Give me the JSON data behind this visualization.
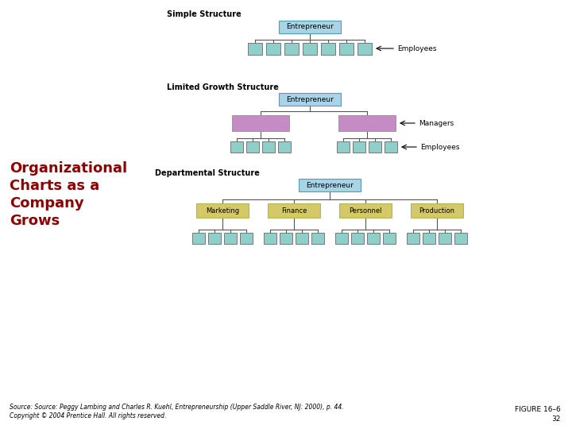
{
  "title_text": "Organizational\nCharts as a\nCompany\nGrows",
  "title_color": "#8B0000",
  "bg_color": "#FFFFFF",
  "teal_color": "#8ECFCA",
  "purple_color": "#C48BC4",
  "yellow_color": "#D4C86A",
  "entrepreneur_fill": "#A8D4E6",
  "entrepreneur_border": "#5599BB",
  "section1_title": "Simple Structure",
  "section2_title": "Limited Growth Structure",
  "section3_title": "Departmental Structure",
  "source_text": "Source: Source: Peggy Lambing and Charles R. Kuehl, Entrepreneurship (Upper Saddle River, NJ: 2000), p. 44.\nCopyright © 2004 Prentice Hall. All rights reserved.",
  "figure_label": "FIGURE 16–6",
  "figure_number": "32",
  "dept_labels": [
    "Marketing",
    "Finance",
    "Personnel",
    "Production"
  ]
}
